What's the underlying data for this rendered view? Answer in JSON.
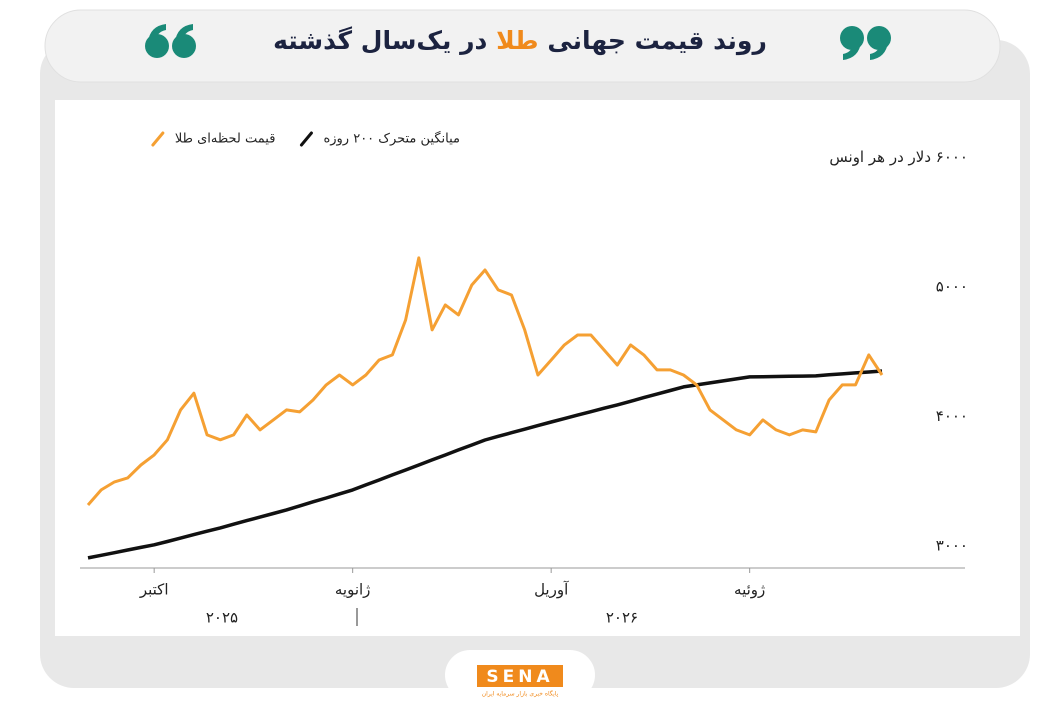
{
  "chart_data": {
    "type": "line",
    "title": [
      "روند قیمت جهانی",
      "طلا",
      "در یک‌سال گذشته"
    ],
    "title_highlight_color": "#f08a1c",
    "categories": [
      null,
      null,
      null,
      null,
      null,
      "اکتبر",
      null,
      null,
      null,
      null,
      null,
      null,
      null,
      null,
      null,
      null,
      null,
      null,
      null,
      null,
      "ژانویه",
      null,
      null,
      null,
      null,
      null,
      null,
      null,
      null,
      null,
      null,
      null,
      null,
      null,
      null,
      "آوریل",
      null,
      null,
      null,
      null,
      null,
      null,
      null,
      null,
      null,
      null,
      null,
      null,
      null,
      null,
      "ژوئیه",
      null,
      null,
      null,
      null,
      null,
      null,
      null,
      null,
      null,
      null
    ],
    "year_labels": [
      "۲۰۲۵",
      "۲۰۲۶"
    ],
    "series": [
      {
        "name": "قیمت لحظه‌ای طلا",
        "color": "#f5a033",
        "values": [
          3347,
          3463,
          3525,
          3556,
          3656,
          3734,
          3850,
          4081,
          4210,
          3888,
          3850,
          3888,
          4042,
          3927,
          4004,
          4081,
          4066,
          4158,
          4274,
          4351,
          4274,
          4351,
          4467,
          4506,
          4776,
          5255,
          4699,
          4892,
          4815,
          5046,
          5162,
          5008,
          4969,
          4699,
          4351,
          4467,
          4583,
          4660,
          4660,
          4544,
          4428,
          4583,
          4506,
          4390,
          4390,
          4351,
          4274,
          4081,
          4004,
          3927,
          3888,
          4004,
          3927,
          3888,
          3927,
          3911,
          4158,
          4274,
          4274,
          4506,
          4351
        ]
      },
      {
        "name": "میانگین متحرک ۲۰۰ روزه",
        "color": "#111111",
        "values": [
          2938,
          2958,
          2978,
          2999,
          3019,
          3039,
          3065,
          3091,
          3118,
          3144,
          3170,
          3198,
          3226,
          3253,
          3281,
          3309,
          3340,
          3371,
          3401,
          3432,
          3463,
          3502,
          3540,
          3579,
          3617,
          3656,
          3695,
          3733,
          3772,
          3810,
          3849,
          3877,
          3905,
          3932,
          3960,
          3988,
          4014,
          4041,
          4067,
          4094,
          4120,
          4148,
          4176,
          4203,
          4231,
          4259,
          4274,
          4290,
          4305,
          4321,
          4336,
          4338,
          4339,
          4341,
          4342,
          4344,
          4352,
          4359,
          4367,
          4374,
          4382
        ]
      }
    ],
    "ylim": [
      2860,
      6000
    ],
    "yticks": [
      {
        "value": 3000,
        "label": "۳۰۰۰"
      },
      {
        "value": 4000,
        "label": "۴۰۰۰"
      },
      {
        "value": 5000,
        "label": "۵۰۰۰"
      },
      {
        "value": 6000,
        "label": "۶۰۰۰ دلار در هر اونس"
      }
    ],
    "grid": false,
    "legend": "top-left",
    "logo": {
      "brand": "SENA",
      "tagline": "پایگاه خبری بازار سرمایه ایران"
    }
  }
}
